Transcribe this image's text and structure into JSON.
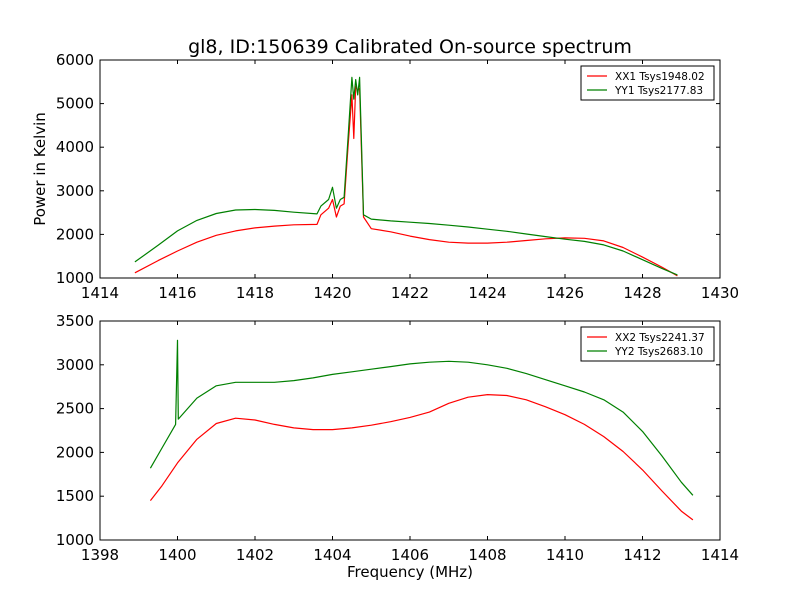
{
  "figure": {
    "title": "gl8, ID:150639 Calibrated On-source spectrum",
    "xlabel": "Frequency (MHz)"
  },
  "chart_data": [
    {
      "type": "line",
      "title": "gl8, ID:150639 Calibrated On-source spectrum",
      "ylabel": "Power in Kelvin",
      "xlim": [
        1414,
        1430
      ],
      "ylim": [
        1000,
        6000
      ],
      "xticks": [
        "1414",
        "1416",
        "1418",
        "1420",
        "1422",
        "1424",
        "1426",
        "1428",
        "1430"
      ],
      "yticks": [
        "1000",
        "2000",
        "3000",
        "4000",
        "5000",
        "6000"
      ],
      "legend_position": "top-right",
      "grid": false,
      "series": [
        {
          "name": "XX1 Tsys1948.02",
          "color": "#ff0000",
          "x": [
            1414.9,
            1415.5,
            1416.0,
            1416.5,
            1417.0,
            1417.5,
            1418.0,
            1418.5,
            1419.0,
            1419.6,
            1419.7,
            1419.9,
            1420.0,
            1420.1,
            1420.2,
            1420.3,
            1420.4,
            1420.5,
            1420.55,
            1420.6,
            1420.65,
            1420.7,
            1420.75,
            1420.8,
            1421.0,
            1421.5,
            1422.0,
            1422.5,
            1423.0,
            1423.5,
            1424.0,
            1424.5,
            1425.0,
            1425.5,
            1426.0,
            1426.5,
            1427.0,
            1427.5,
            1428.0,
            1428.5,
            1428.9
          ],
          "y": [
            1120,
            1400,
            1620,
            1820,
            1980,
            2080,
            2150,
            2190,
            2220,
            2230,
            2450,
            2600,
            2800,
            2400,
            2650,
            2700,
            4000,
            5200,
            4200,
            5400,
            5300,
            5350,
            3800,
            2400,
            2130,
            2060,
            1960,
            1880,
            1820,
            1800,
            1800,
            1820,
            1860,
            1900,
            1920,
            1910,
            1850,
            1700,
            1480,
            1250,
            1050
          ]
        },
        {
          "name": "YY1 Tsys2177.83",
          "color": "#008000",
          "x": [
            1414.9,
            1415.5,
            1416.0,
            1416.5,
            1417.0,
            1417.5,
            1418.0,
            1418.5,
            1419.0,
            1419.6,
            1419.7,
            1419.9,
            1420.0,
            1420.1,
            1420.2,
            1420.3,
            1420.4,
            1420.5,
            1420.55,
            1420.6,
            1420.65,
            1420.7,
            1420.75,
            1420.8,
            1421.0,
            1421.5,
            1422.0,
            1422.5,
            1423.0,
            1423.5,
            1424.0,
            1424.5,
            1425.0,
            1425.5,
            1426.0,
            1426.5,
            1427.0,
            1427.5,
            1428.0,
            1428.5,
            1428.9
          ],
          "y": [
            1370,
            1750,
            2080,
            2320,
            2480,
            2560,
            2570,
            2550,
            2510,
            2470,
            2650,
            2800,
            3080,
            2600,
            2800,
            2850,
            4200,
            5600,
            5100,
            5550,
            5200,
            5600,
            4000,
            2450,
            2350,
            2310,
            2280,
            2250,
            2210,
            2170,
            2120,
            2070,
            2010,
            1950,
            1890,
            1840,
            1760,
            1620,
            1420,
            1220,
            1070
          ]
        }
      ]
    },
    {
      "type": "line",
      "title": "",
      "xlabel": "Frequency (MHz)",
      "ylabel": "",
      "xlim": [
        1398,
        1414
      ],
      "ylim": [
        1000,
        3500
      ],
      "xticks": [
        "1398",
        "1400",
        "1402",
        "1404",
        "1406",
        "1408",
        "1410",
        "1412",
        "1414"
      ],
      "yticks": [
        "1000",
        "1500",
        "2000",
        "2500",
        "3000",
        "3500"
      ],
      "legend_position": "top-right",
      "grid": false,
      "series": [
        {
          "name": "XX2 Tsys2241.37",
          "color": "#ff0000",
          "x": [
            1399.3,
            1399.6,
            1400.0,
            1400.5,
            1401.0,
            1401.5,
            1402.0,
            1402.5,
            1403.0,
            1403.5,
            1404.0,
            1404.5,
            1405.0,
            1405.5,
            1406.0,
            1406.5,
            1407.0,
            1407.5,
            1408.0,
            1408.5,
            1409.0,
            1409.5,
            1410.0,
            1410.5,
            1411.0,
            1411.5,
            1412.0,
            1412.5,
            1413.0,
            1413.3
          ],
          "y": [
            1450,
            1620,
            1880,
            2150,
            2330,
            2390,
            2370,
            2320,
            2280,
            2260,
            2260,
            2280,
            2310,
            2350,
            2400,
            2460,
            2560,
            2630,
            2660,
            2650,
            2600,
            2520,
            2430,
            2320,
            2180,
            2010,
            1800,
            1560,
            1330,
            1230
          ]
        },
        {
          "name": "YY2 Tsys2683.10",
          "color": "#008000",
          "x": [
            1399.3,
            1399.6,
            1399.95,
            1400.0,
            1400.02,
            1400.5,
            1401.0,
            1401.5,
            1402.0,
            1402.5,
            1403.0,
            1403.5,
            1404.0,
            1404.5,
            1405.0,
            1405.5,
            1406.0,
            1406.5,
            1407.0,
            1407.5,
            1408.0,
            1408.5,
            1409.0,
            1409.5,
            1410.0,
            1410.5,
            1411.0,
            1411.5,
            1412.0,
            1412.5,
            1413.0,
            1413.3
          ],
          "y": [
            1820,
            2050,
            2320,
            3280,
            2380,
            2620,
            2760,
            2800,
            2800,
            2800,
            2820,
            2850,
            2890,
            2920,
            2950,
            2980,
            3010,
            3030,
            3040,
            3030,
            3000,
            2960,
            2900,
            2830,
            2760,
            2690,
            2600,
            2460,
            2240,
            1960,
            1660,
            1510
          ]
        }
      ]
    }
  ]
}
